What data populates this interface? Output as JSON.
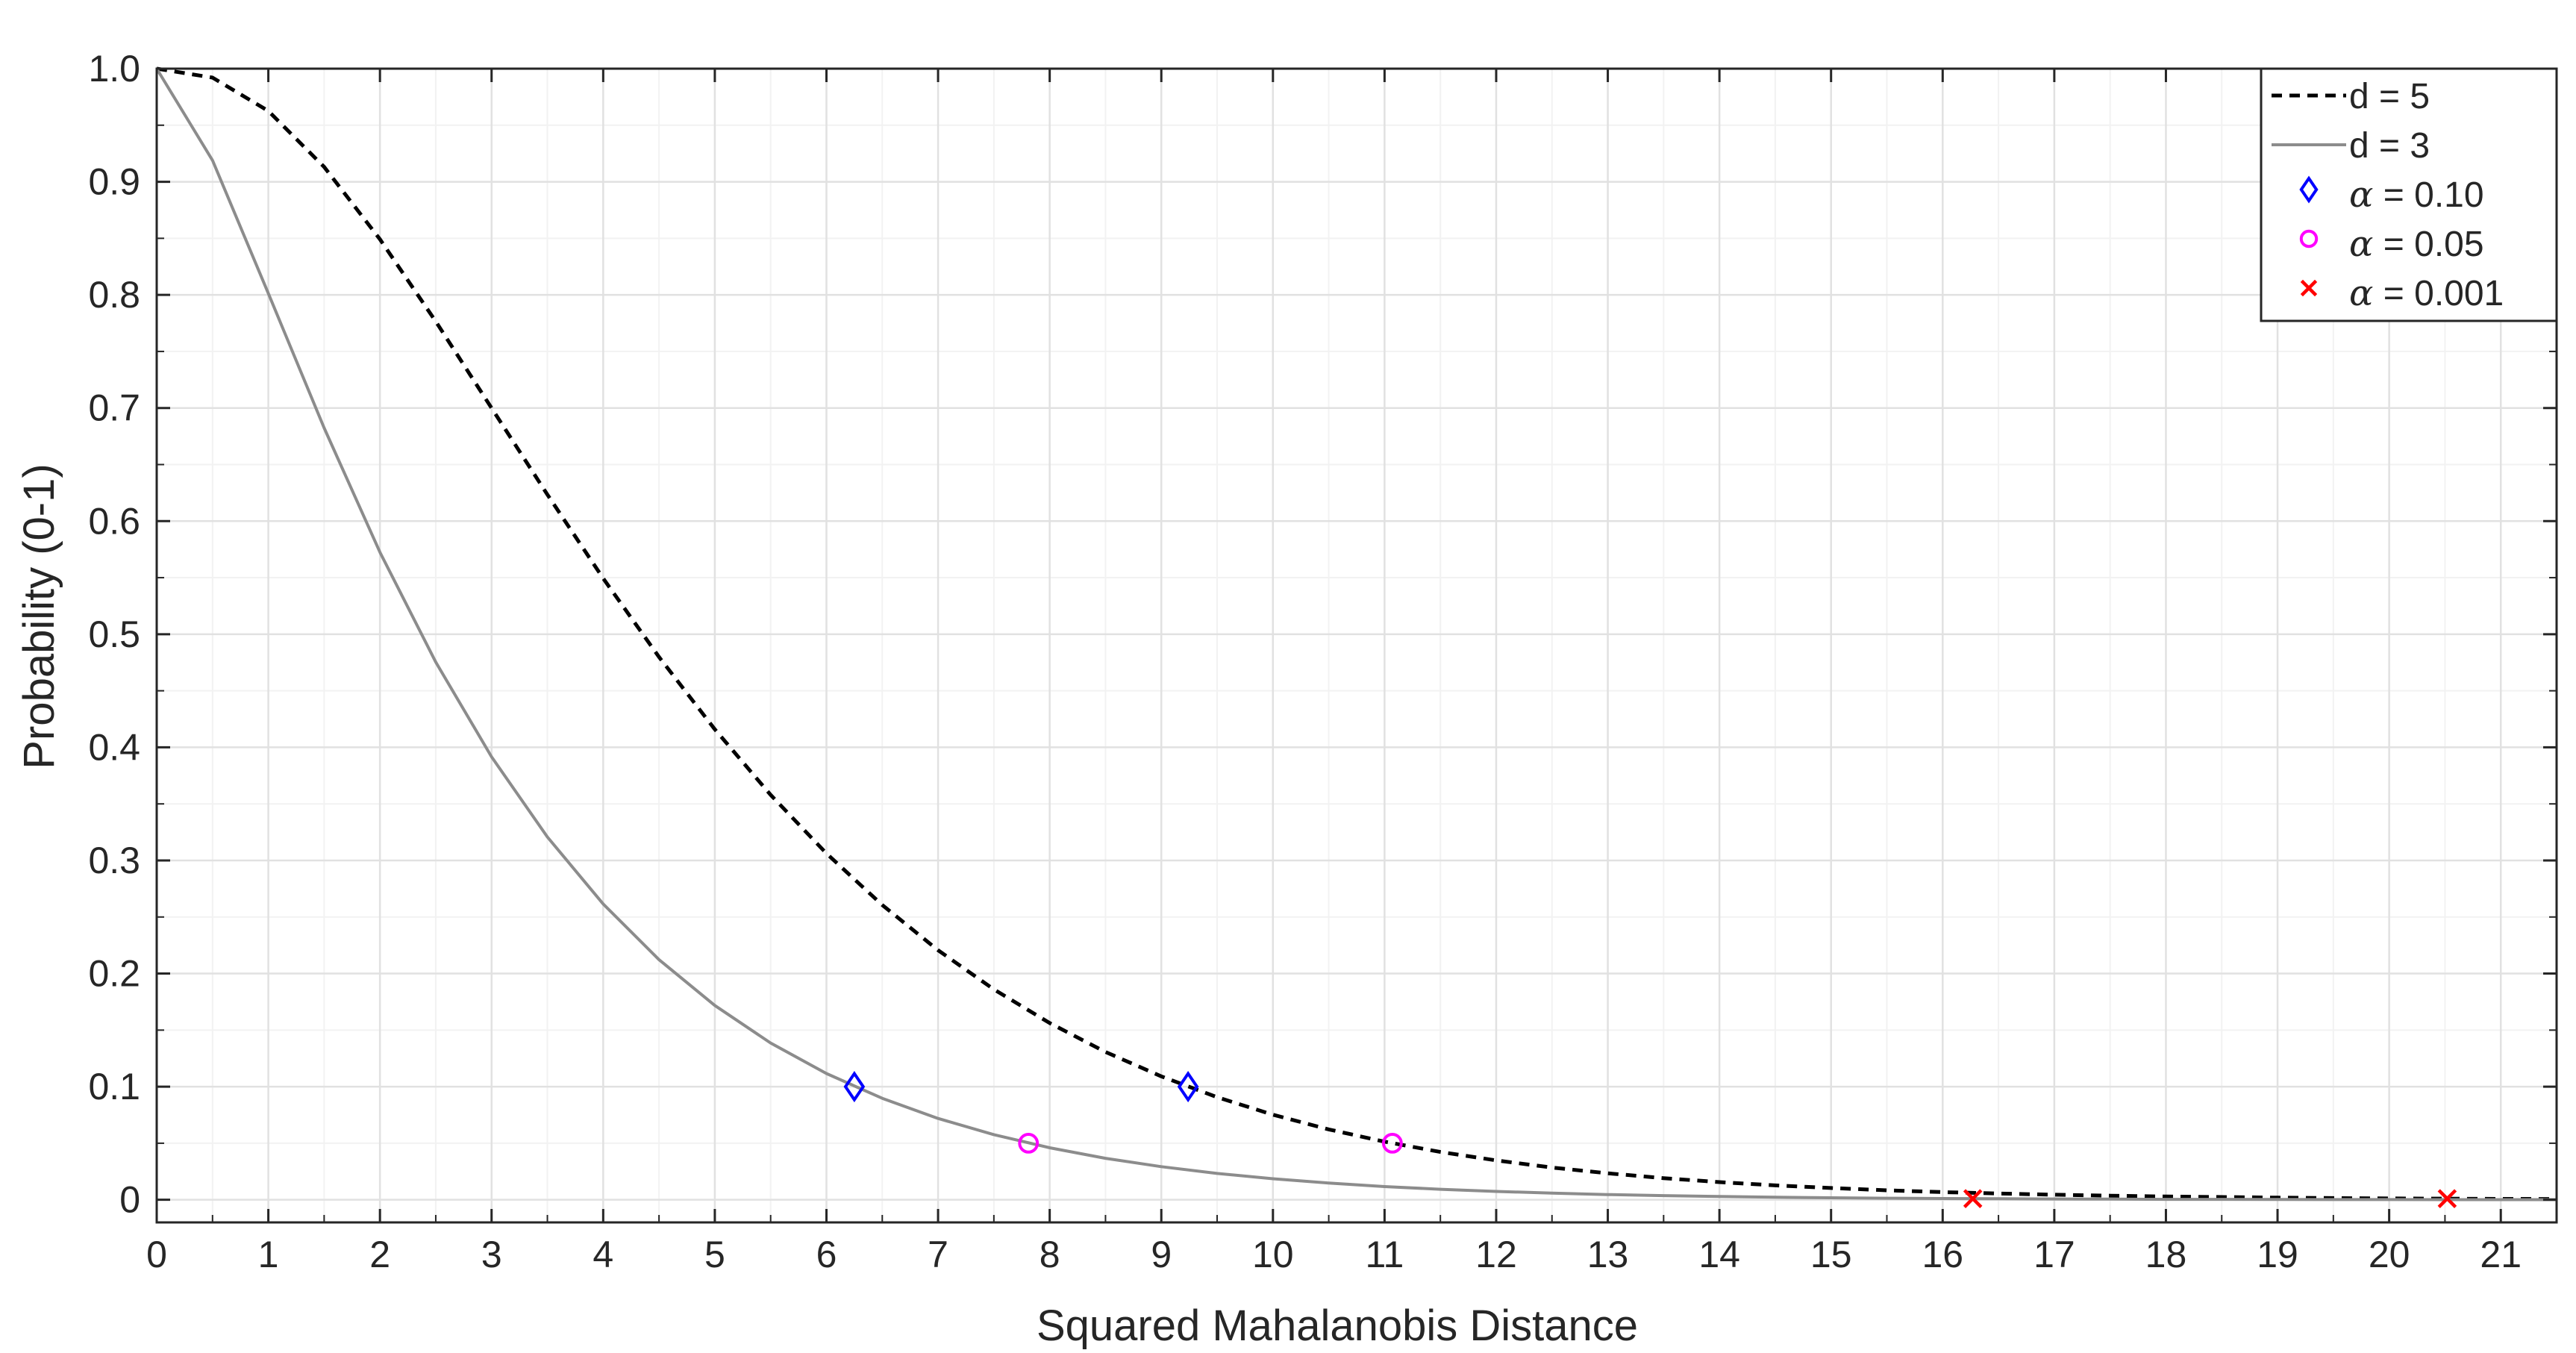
{
  "chart_data": {
    "type": "line",
    "title": "",
    "xlabel": "Squared Mahalanobis Distance",
    "ylabel": "Probability (0-1)",
    "xlim": [
      0,
      21.5
    ],
    "ylim": [
      -0.02,
      1.0
    ],
    "grid": true,
    "minor_grid": true,
    "legend_position": "top-right",
    "x_ticks": [
      "0",
      "1",
      "2",
      "3",
      "4",
      "5",
      "6",
      "7",
      "8",
      "9",
      "10",
      "11",
      "12",
      "13",
      "14",
      "15",
      "16",
      "17",
      "18",
      "19",
      "20",
      "21"
    ],
    "y_ticks": [
      "0",
      "0.1",
      "0.2",
      "0.3",
      "0.4",
      "0.5",
      "0.6",
      "0.7",
      "0.8",
      "0.9",
      "1.0"
    ],
    "series": [
      {
        "name": "d = 5",
        "style": "dashed",
        "color": "#000000",
        "x": [
          0,
          0.5,
          1,
          1.5,
          2,
          2.5,
          3,
          3.5,
          4,
          4.5,
          5,
          5.5,
          6,
          6.5,
          7,
          7.5,
          8,
          8.5,
          9,
          9.5,
          10,
          10.5,
          11,
          11.5,
          12,
          12.5,
          13,
          13.5,
          14,
          14.5,
          15,
          15.5,
          16,
          16.5,
          17,
          17.5,
          18,
          18.5,
          19,
          19.5,
          20,
          20.5,
          21,
          21.5
        ],
        "y": [
          1.0,
          0.9921,
          0.9626,
          0.9131,
          0.8491,
          0.7765,
          0.7,
          0.6235,
          0.5494,
          0.4799,
          0.4159,
          0.358,
          0.3062,
          0.2606,
          0.2206,
          0.186,
          0.1562,
          0.1307,
          0.1091,
          0.0907,
          0.0752,
          0.0622,
          0.0514,
          0.0423,
          0.0348,
          0.0285,
          0.0234,
          0.0191,
          0.0156,
          0.0127,
          0.0104,
          0.0084,
          0.0068,
          0.0055,
          0.0045,
          0.0036,
          0.0029,
          0.0024,
          0.0019,
          0.0015,
          0.0012,
          0.001,
          0.0008,
          0.0007
        ]
      },
      {
        "name": "d = 3",
        "style": "solid",
        "color": "#8c8c8c",
        "x": [
          0,
          0.5,
          1,
          1.5,
          2,
          2.5,
          3,
          3.5,
          4,
          4.5,
          5,
          5.5,
          6,
          6.5,
          7,
          7.5,
          8,
          8.5,
          9,
          9.5,
          10,
          10.5,
          11,
          11.5,
          12,
          12.5,
          13,
          13.5,
          14,
          14.5,
          15,
          15.5,
          16,
          16.5,
          17,
          17.5,
          18,
          18.5,
          19,
          19.5,
          20,
          20.5,
          21,
          21.5
        ],
        "y": [
          1.0,
          0.9189,
          0.8013,
          0.6823,
          0.5724,
          0.4753,
          0.3916,
          0.3208,
          0.2615,
          0.2123,
          0.1718,
          0.1386,
          0.1116,
          0.0897,
          0.0719,
          0.0576,
          0.046,
          0.0367,
          0.0293,
          0.0233,
          0.0186,
          0.0148,
          0.0117,
          0.0093,
          0.0074,
          0.0059,
          0.0046,
          0.0037,
          0.0029,
          0.0023,
          0.0018,
          0.0014,
          0.0011,
          0.0009,
          0.0007,
          0.0006,
          0.0004,
          0.0004,
          0.0003,
          0.0002,
          0.0002,
          0.0001,
          0.0001,
          0.0001
        ]
      }
    ],
    "markers": [
      {
        "name": "α = 0.10",
        "symbol": "diamond",
        "color": "#0000ff",
        "points": [
          [
            6.25,
            0.1
          ],
          [
            9.24,
            0.1
          ]
        ]
      },
      {
        "name": "α = 0.05",
        "symbol": "circle",
        "color": "#ff00ff",
        "points": [
          [
            7.81,
            0.05
          ],
          [
            11.07,
            0.05
          ]
        ]
      },
      {
        "name": "α = 0.001",
        "symbol": "cross",
        "color": "#ff0000",
        "points": [
          [
            16.27,
            0.001
          ],
          [
            20.52,
            0.001
          ]
        ]
      }
    ],
    "legend": [
      {
        "label": "d = 5",
        "kind": "line",
        "style": "dashed",
        "color": "#000000"
      },
      {
        "label": "d = 3",
        "kind": "line",
        "style": "solid",
        "color": "#8c8c8c"
      },
      {
        "alpha_symbol": "α",
        "label": " = 0.10",
        "kind": "marker",
        "symbol": "diamond",
        "color": "#0000ff"
      },
      {
        "alpha_symbol": "α",
        "label": " = 0.05",
        "kind": "marker",
        "symbol": "circle",
        "color": "#ff00ff"
      },
      {
        "alpha_symbol": "α",
        "label": " = 0.001",
        "kind": "marker",
        "symbol": "cross",
        "color": "#ff0000"
      }
    ]
  }
}
